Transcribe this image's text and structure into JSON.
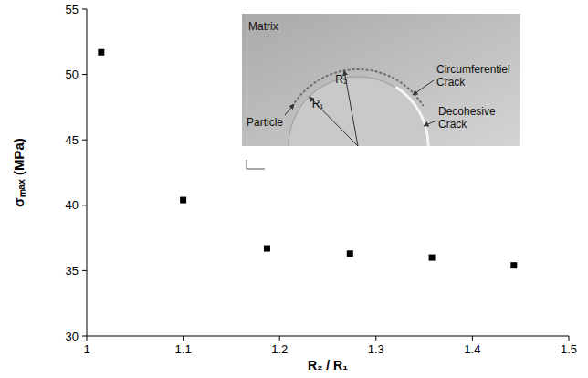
{
  "chart_data": {
    "type": "scatter",
    "x_label": "R₂ / R₁",
    "y_label": "σₘₐₓ (MPa)",
    "x": [
      1.015,
      1.1,
      1.187,
      1.273,
      1.358,
      1.443
    ],
    "values": [
      51.7,
      40.4,
      36.7,
      36.3,
      36.0,
      35.4
    ],
    "color": "#000000",
    "marker": "square",
    "xlim": [
      1,
      1.5
    ],
    "xticks": [
      1,
      1.1,
      1.2,
      1.3,
      1.4,
      1.5
    ],
    "ylim": [
      30,
      55
    ],
    "yticks": [
      30,
      35,
      40,
      45,
      50,
      55
    ],
    "grid": false,
    "annotations": [
      "Matrix",
      "Circumferentiel Crack",
      "Decohesive Crack",
      "Particle",
      "R₂",
      "R₁"
    ]
  }
}
